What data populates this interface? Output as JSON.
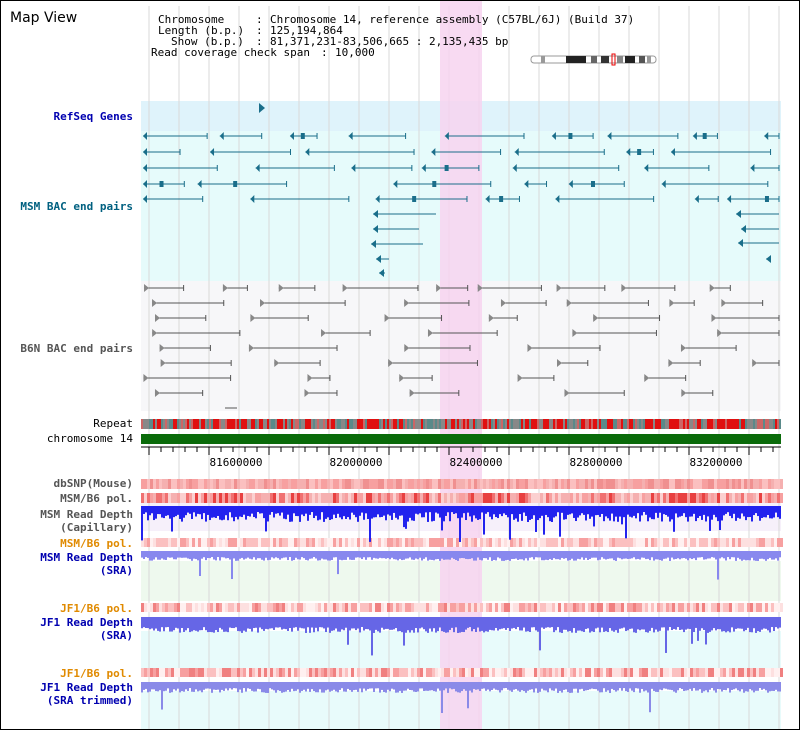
{
  "title": "Map View",
  "info": {
    "chromosome": {
      "label": "Chromosome",
      "value": "Chromosome 14, reference assembly (C57BL/6J) (Build 37)"
    },
    "length": {
      "label": "Length (b.p.)",
      "value": "125,194,864"
    },
    "show": {
      "label": "Show (b.p.)",
      "value": "81,371,231-83,506,665 : 2,135,435 bp"
    },
    "read_coverage": {
      "label": "Read coverage check span",
      "value": "10,000"
    }
  },
  "tracks": {
    "refseq": "RefSeq Genes",
    "msm_bac": "MSM BAC end pairs",
    "b6n_bac": "B6N BAC end pairs",
    "repeat": "Repeat",
    "chromosome": "chromosome 14",
    "dbsnp": "dbSNP(Mouse)",
    "msm_b6_pol_1": "MSM/B6 pol.",
    "msm_read_depth_cap": "MSM Read Depth\n(Capillary)",
    "msm_b6_pol_2": "MSM/B6 pol.",
    "msm_read_depth_sra": "MSM Read Depth\n(SRA)",
    "jf1_b6_pol_1": "JF1/B6 pol.",
    "jf1_read_depth_sra": "JF1 Read Depth\n(SRA)",
    "jf1_b6_pol_2": "JF1/B6 pol.",
    "jf1_read_depth_trimmed": "JF1 Read Depth\n(SRA trimmed)"
  },
  "axis": {
    "ticks": [
      "81600000",
      "82000000",
      "82400000",
      "82800000",
      "83200000"
    ]
  },
  "colors": {
    "refseq": "#1a6e8a",
    "refseq_bg": "#dff3fb",
    "msm_bg": "#e6fbfb",
    "b6n": "#555555",
    "highlight": "#f7d3f0",
    "chromosome_bar": "#0a6b0a",
    "track_orange": "#e08a00",
    "track_blue": "#0000b0",
    "track_teal": "#006080",
    "depth_strong": "#2222ee",
    "depth_light": "#8888ee",
    "snp_red": "#f08080"
  }
}
